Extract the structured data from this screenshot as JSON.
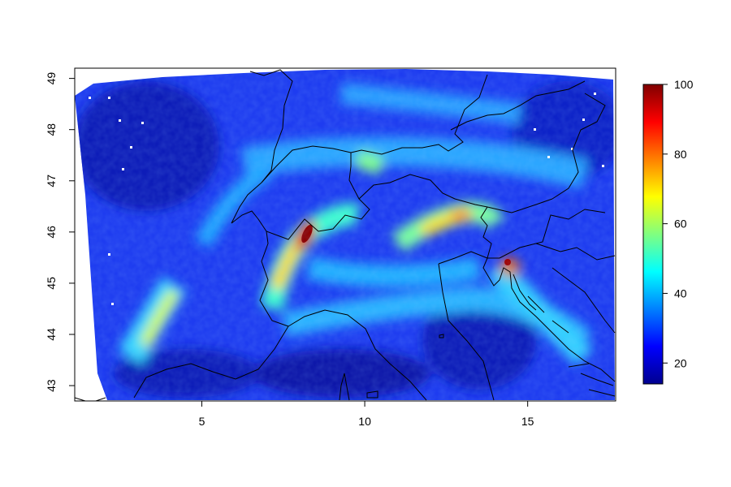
{
  "map": {
    "x_ticks": [
      {
        "value": 5,
        "label": "5"
      },
      {
        "value": 10,
        "label": "10"
      },
      {
        "value": 15,
        "label": "15"
      }
    ],
    "y_ticks": [
      {
        "value": 43,
        "label": "43"
      },
      {
        "value": 44,
        "label": "44"
      },
      {
        "value": 45,
        "label": "45"
      },
      {
        "value": 46,
        "label": "46"
      },
      {
        "value": 47,
        "label": "47"
      },
      {
        "value": 48,
        "label": "48"
      },
      {
        "value": 49,
        "label": "49"
      }
    ],
    "lon_range": [
      1.1,
      17.7
    ],
    "lat_range": [
      42.7,
      49.2
    ],
    "colorbar": {
      "range": [
        14,
        100
      ],
      "ticks": [
        {
          "value": 20,
          "label": "20"
        },
        {
          "value": 40,
          "label": "40"
        },
        {
          "value": 60,
          "label": "60"
        },
        {
          "value": 80,
          "label": "80"
        },
        {
          "value": 100,
          "label": "100"
        }
      ],
      "palette": [
        "#00008f",
        "#0000ff",
        "#0080ff",
        "#00ffff",
        "#80ff80",
        "#ffff00",
        "#ff8000",
        "#ff0000",
        "#800000"
      ]
    }
  }
}
